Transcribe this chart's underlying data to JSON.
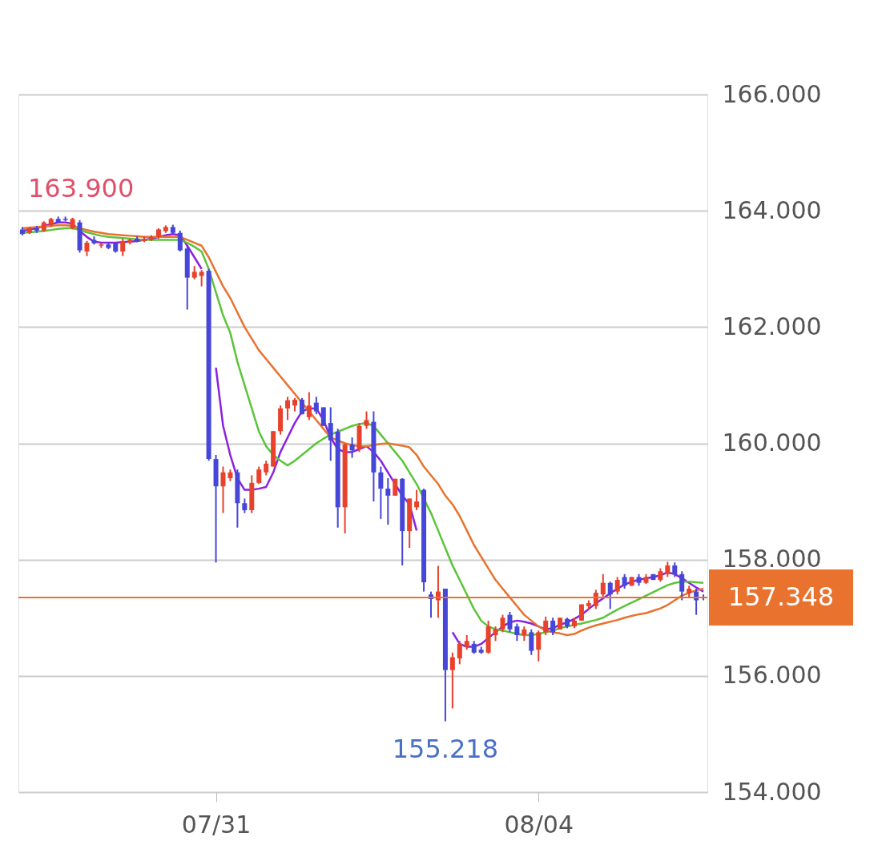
{
  "chart_data": {
    "type": "candlestick",
    "categories": [
      null,
      null,
      null,
      null,
      null,
      null,
      null,
      null,
      null,
      null,
      null,
      null,
      null,
      null,
      null,
      null,
      null,
      null,
      null,
      null,
      null,
      null,
      null,
      null,
      null,
      null,
      null,
      "07/31",
      null,
      null,
      null,
      null,
      null,
      null,
      null,
      null,
      null,
      null,
      null,
      null,
      null,
      null,
      null,
      null,
      null,
      null,
      null,
      null,
      null,
      null,
      null,
      null,
      null,
      null,
      null,
      null,
      null,
      null,
      null,
      null,
      null,
      null,
      null,
      null,
      null,
      null,
      null,
      null,
      null,
      null,
      null,
      null,
      "08/04",
      null,
      null,
      null,
      null,
      null,
      null,
      null,
      null,
      null,
      null,
      null,
      null,
      null,
      null,
      null,
      null,
      null,
      null,
      null,
      null,
      null,
      null,
      null
    ],
    "ohlc": [
      [
        163.68,
        163.72,
        163.58,
        163.6
      ],
      [
        163.62,
        163.72,
        163.6,
        163.7
      ],
      [
        163.7,
        163.74,
        163.62,
        163.66
      ],
      [
        163.66,
        163.82,
        163.64,
        163.8
      ],
      [
        163.75,
        163.88,
        163.72,
        163.86
      ],
      [
        163.86,
        163.9,
        163.78,
        163.8
      ],
      [
        163.86,
        163.9,
        163.82,
        163.84
      ],
      [
        163.7,
        163.88,
        163.68,
        163.86
      ],
      [
        163.8,
        163.84,
        163.28,
        163.32
      ],
      [
        163.3,
        163.48,
        163.22,
        163.45
      ],
      [
        163.5,
        163.56,
        163.42,
        163.44
      ],
      [
        163.4,
        163.44,
        163.36,
        163.42
      ],
      [
        163.42,
        163.44,
        163.34,
        163.36
      ],
      [
        163.44,
        163.46,
        163.28,
        163.3
      ],
      [
        163.3,
        163.52,
        163.22,
        163.48
      ],
      [
        163.45,
        163.52,
        163.42,
        163.5
      ],
      [
        163.52,
        163.56,
        163.46,
        163.48
      ],
      [
        163.48,
        163.56,
        163.46,
        163.52
      ],
      [
        163.5,
        163.58,
        163.48,
        163.55
      ],
      [
        163.55,
        163.7,
        163.52,
        163.68
      ],
      [
        163.65,
        163.75,
        163.62,
        163.72
      ],
      [
        163.72,
        163.76,
        163.6,
        163.62
      ],
      [
        163.62,
        163.66,
        163.3,
        163.32
      ],
      [
        163.35,
        163.4,
        162.3,
        162.85
      ],
      [
        162.85,
        163.05,
        162.82,
        162.95
      ],
      [
        162.88,
        162.98,
        162.7,
        162.95
      ],
      [
        162.97,
        163.0,
        159.7,
        159.73
      ],
      [
        159.73,
        159.8,
        157.95,
        159.26
      ],
      [
        159.26,
        159.6,
        158.8,
        159.5
      ],
      [
        159.4,
        159.55,
        159.35,
        159.5
      ],
      [
        159.5,
        159.55,
        158.55,
        158.97
      ],
      [
        158.97,
        159.05,
        158.8,
        158.85
      ],
      [
        158.85,
        159.45,
        158.8,
        159.32
      ],
      [
        159.32,
        159.6,
        159.3,
        159.55
      ],
      [
        159.5,
        159.7,
        159.45,
        159.65
      ],
      [
        159.6,
        160.21,
        159.6,
        160.21
      ],
      [
        160.21,
        160.65,
        160.15,
        160.6
      ],
      [
        160.6,
        160.8,
        160.4,
        160.74
      ],
      [
        160.65,
        160.78,
        160.55,
        160.75
      ],
      [
        160.75,
        160.78,
        160.5,
        160.5
      ],
      [
        160.45,
        160.88,
        160.4,
        160.65
      ],
      [
        160.7,
        160.8,
        160.5,
        160.55
      ],
      [
        160.62,
        160.62,
        160.3,
        160.3
      ],
      [
        160.35,
        160.62,
        159.7,
        160.05
      ],
      [
        160.2,
        160.25,
        158.55,
        158.9
      ],
      [
        158.9,
        160.0,
        158.45,
        159.98
      ],
      [
        159.98,
        160.1,
        159.75,
        159.88
      ],
      [
        159.9,
        160.35,
        159.85,
        160.3
      ],
      [
        160.3,
        160.55,
        160.25,
        160.4
      ],
      [
        160.37,
        160.55,
        159.0,
        159.5
      ],
      [
        159.5,
        159.6,
        158.7,
        159.22
      ],
      [
        159.22,
        159.4,
        158.6,
        159.1
      ],
      [
        159.1,
        159.39,
        159.1,
        159.39
      ],
      [
        159.39,
        159.4,
        157.9,
        158.49
      ],
      [
        158.49,
        159.05,
        158.2,
        159.05
      ],
      [
        158.9,
        159.2,
        158.85,
        159.0
      ],
      [
        159.2,
        159.22,
        157.45,
        157.61
      ],
      [
        157.4,
        157.45,
        157.0,
        157.32
      ],
      [
        157.3,
        157.89,
        157.0,
        157.45
      ],
      [
        157.5,
        157.5,
        155.218,
        156.1
      ],
      [
        156.1,
        156.4,
        155.44,
        156.32
      ],
      [
        156.3,
        156.6,
        156.2,
        156.55
      ],
      [
        156.5,
        156.7,
        156.45,
        156.6
      ],
      [
        156.55,
        156.6,
        156.38,
        156.4
      ],
      [
        156.45,
        156.5,
        156.38,
        156.4
      ],
      [
        156.4,
        156.95,
        156.38,
        156.85
      ],
      [
        156.7,
        156.85,
        156.6,
        156.8
      ],
      [
        156.8,
        157.05,
        156.75,
        157.0
      ],
      [
        157.05,
        157.1,
        156.75,
        156.8
      ],
      [
        156.85,
        156.9,
        156.6,
        156.7
      ],
      [
        156.7,
        156.85,
        156.6,
        156.8
      ],
      [
        156.75,
        156.8,
        156.36,
        156.43
      ],
      [
        156.45,
        156.78,
        156.25,
        156.75
      ],
      [
        156.75,
        157.02,
        156.7,
        156.95
      ],
      [
        156.95,
        157.0,
        156.7,
        156.75
      ],
      [
        156.8,
        157.0,
        156.8,
        157.0
      ],
      [
        156.98,
        157.0,
        156.82,
        156.85
      ],
      [
        156.85,
        157.0,
        156.82,
        156.95
      ],
      [
        156.95,
        157.23,
        156.95,
        157.23
      ],
      [
        157.2,
        157.3,
        157.15,
        157.25
      ],
      [
        157.2,
        157.48,
        157.15,
        157.43
      ],
      [
        157.4,
        157.75,
        157.35,
        157.6
      ],
      [
        157.6,
        157.62,
        157.15,
        157.4
      ],
      [
        157.45,
        157.7,
        157.4,
        157.65
      ],
      [
        157.7,
        157.75,
        157.5,
        157.55
      ],
      [
        157.55,
        157.7,
        157.55,
        157.7
      ],
      [
        157.7,
        157.75,
        157.55,
        157.6
      ],
      [
        157.6,
        157.75,
        157.58,
        157.7
      ],
      [
        157.75,
        157.75,
        157.65,
        157.65
      ],
      [
        157.65,
        157.85,
        157.62,
        157.8
      ],
      [
        157.75,
        157.96,
        157.7,
        157.9
      ],
      [
        157.9,
        157.95,
        157.7,
        157.75
      ],
      [
        157.75,
        157.8,
        157.3,
        157.45
      ],
      [
        157.42,
        157.55,
        157.35,
        157.5
      ],
      [
        157.45,
        157.5,
        157.05,
        157.3
      ],
      [
        157.36,
        157.4,
        157.3,
        157.348
      ]
    ],
    "colors": [
      "#4646d8",
      "#e8412c",
      "#4646d8",
      "#e8412c",
      "#e8412c",
      "#4646d8",
      "#4646d8",
      "#e8412c",
      "#4646d8",
      "#e8412c",
      "#4646d8",
      "#e8412c",
      "#4646d8",
      "#4646d8",
      "#e8412c",
      "#e8412c",
      "#4646d8",
      "#e8412c",
      "#e8412c",
      "#e8412c",
      "#e8412c",
      "#4646d8",
      "#4646d8",
      "#4646d8",
      "#e8412c",
      "#e8412c",
      "#4646d8",
      "#4646d8",
      "#e8412c",
      "#e8412c",
      "#4646d8",
      "#4646d8",
      "#e8412c",
      "#e8412c",
      "#e8412c",
      "#e8412c",
      "#e8412c",
      "#e8412c",
      "#e8412c",
      "#4646d8",
      "#e8412c",
      "#4646d8",
      "#4646d8",
      "#4646d8",
      "#4646d8",
      "#e8412c",
      "#4646d8",
      "#e8412c",
      "#e8412c",
      "#4646d8",
      "#4646d8",
      "#4646d8",
      "#e8412c",
      "#4646d8",
      "#e8412c",
      "#e8412c",
      "#4646d8",
      "#4646d8",
      "#e8412c",
      "#4646d8",
      "#e8412c",
      "#e8412c",
      "#e8412c",
      "#4646d8",
      "#4646d8",
      "#e8412c",
      "#e8412c",
      "#e8412c",
      "#4646d8",
      "#4646d8",
      "#e8412c",
      "#4646d8",
      "#e8412c",
      "#e8412c",
      "#4646d8",
      "#e8412c",
      "#4646d8",
      "#e8412c",
      "#e8412c",
      "#e8412c",
      "#e8412c",
      "#e8412c",
      "#4646d8",
      "#e8412c",
      "#4646d8",
      "#e8412c",
      "#4646d8",
      "#e8412c",
      "#4646d8",
      "#e8412c",
      "#e8412c",
      "#4646d8",
      "#4646d8",
      "#e8412c",
      "#4646d8",
      "#4646d8"
    ],
    "series": [
      {
        "type": "line",
        "color": "#8a22e0",
        "values": [
          163.65,
          163.68,
          163.7,
          163.74,
          163.77,
          163.8,
          163.8,
          163.78,
          163.65,
          163.55,
          163.47,
          163.45,
          163.45,
          163.45,
          163.46,
          163.47,
          163.48,
          163.5,
          163.52,
          163.55,
          163.58,
          163.6,
          163.58,
          163.4,
          163.2,
          163.0,
          null,
          161.3,
          160.3,
          159.8,
          159.4,
          159.2,
          159.2,
          159.22,
          159.25,
          159.5,
          159.85,
          160.1,
          160.35,
          160.55,
          160.6,
          160.6,
          160.4,
          160.1,
          159.9,
          159.85,
          159.85,
          159.9,
          159.95,
          159.85,
          159.7,
          159.5,
          159.3,
          159.1,
          158.95,
          158.5,
          null,
          null,
          null,
          null,
          156.75,
          156.55,
          156.5,
          156.5,
          156.55,
          156.65,
          156.75,
          156.85,
          156.92,
          156.95,
          156.93,
          156.9,
          156.85,
          156.8,
          156.82,
          156.88,
          156.92,
          156.98,
          157.05,
          157.15,
          157.25,
          157.33,
          157.42,
          157.5,
          157.57,
          157.62,
          157.65,
          157.68,
          157.7,
          157.73,
          157.78,
          157.75,
          157.68,
          157.6,
          157.52,
          157.45
        ]
      },
      {
        "type": "line",
        "color": "#5cc43a",
        "values": [
          163.62,
          163.63,
          163.64,
          163.65,
          163.67,
          163.69,
          163.7,
          163.7,
          163.67,
          163.63,
          163.6,
          163.57,
          163.55,
          163.54,
          163.53,
          163.52,
          163.51,
          163.5,
          163.5,
          163.5,
          163.5,
          163.5,
          163.5,
          163.45,
          163.38,
          163.3,
          163.0,
          162.6,
          162.2,
          161.9,
          161.4,
          161.0,
          160.6,
          160.2,
          159.95,
          159.8,
          159.7,
          159.62,
          159.7,
          159.8,
          159.9,
          160.0,
          160.08,
          160.15,
          160.2,
          160.25,
          160.3,
          160.33,
          160.35,
          160.3,
          160.15,
          160.0,
          159.85,
          159.7,
          159.5,
          159.3,
          159.05,
          158.8,
          158.5,
          158.2,
          157.9,
          157.65,
          157.4,
          157.15,
          156.95,
          156.85,
          156.8,
          156.78,
          156.75,
          156.72,
          156.7,
          156.7,
          156.72,
          156.75,
          156.78,
          156.82,
          156.85,
          156.88,
          156.9,
          156.93,
          156.96,
          157.0,
          157.07,
          157.14,
          157.2,
          157.26,
          157.32,
          157.38,
          157.44,
          157.5,
          157.56,
          157.6,
          157.62,
          157.62,
          157.61,
          157.6
        ]
      },
      {
        "type": "line",
        "color": "#e8722e",
        "values": [
          163.7,
          163.71,
          163.72,
          163.73,
          163.74,
          163.75,
          163.75,
          163.74,
          163.7,
          163.67,
          163.64,
          163.62,
          163.6,
          163.59,
          163.58,
          163.57,
          163.56,
          163.55,
          163.55,
          163.55,
          163.55,
          163.55,
          163.55,
          163.5,
          163.45,
          163.4,
          163.2,
          162.95,
          162.7,
          162.5,
          162.25,
          162.0,
          161.8,
          161.6,
          161.45,
          161.3,
          161.15,
          161.0,
          160.85,
          160.7,
          160.55,
          160.4,
          160.25,
          160.1,
          160.05,
          160.0,
          159.97,
          159.95,
          159.95,
          159.97,
          159.99,
          160.0,
          159.98,
          159.96,
          159.93,
          159.8,
          159.6,
          159.45,
          159.3,
          159.1,
          158.95,
          158.75,
          158.5,
          158.25,
          158.05,
          157.85,
          157.65,
          157.5,
          157.35,
          157.2,
          157.05,
          156.95,
          156.85,
          156.78,
          156.75,
          156.73,
          156.7,
          156.72,
          156.78,
          156.83,
          156.87,
          156.9,
          156.93,
          156.96,
          157.0,
          157.03,
          157.06,
          157.08,
          157.12,
          157.16,
          157.22,
          157.3,
          157.38,
          157.43,
          157.47,
          157.5
        ]
      }
    ],
    "ylim": [
      154,
      166
    ],
    "yticks": [
      {
        "value": 154,
        "label": "154.000"
      },
      {
        "value": 156,
        "label": "156.000"
      },
      {
        "value": 158,
        "label": "158.000"
      },
      {
        "value": 160,
        "label": "160.000"
      },
      {
        "value": 162,
        "label": "162.000"
      },
      {
        "value": 164,
        "label": "164.000"
      },
      {
        "value": 166,
        "label": "166.000"
      }
    ],
    "grid": "y",
    "ref_lines": [
      {
        "axis": "y",
        "value": 157.348,
        "label": "157.348",
        "color": "#e8722e"
      }
    ],
    "annotations": [
      "163.900",
      {
        "text": "155.218",
        "y": 155.218
      }
    ]
  }
}
